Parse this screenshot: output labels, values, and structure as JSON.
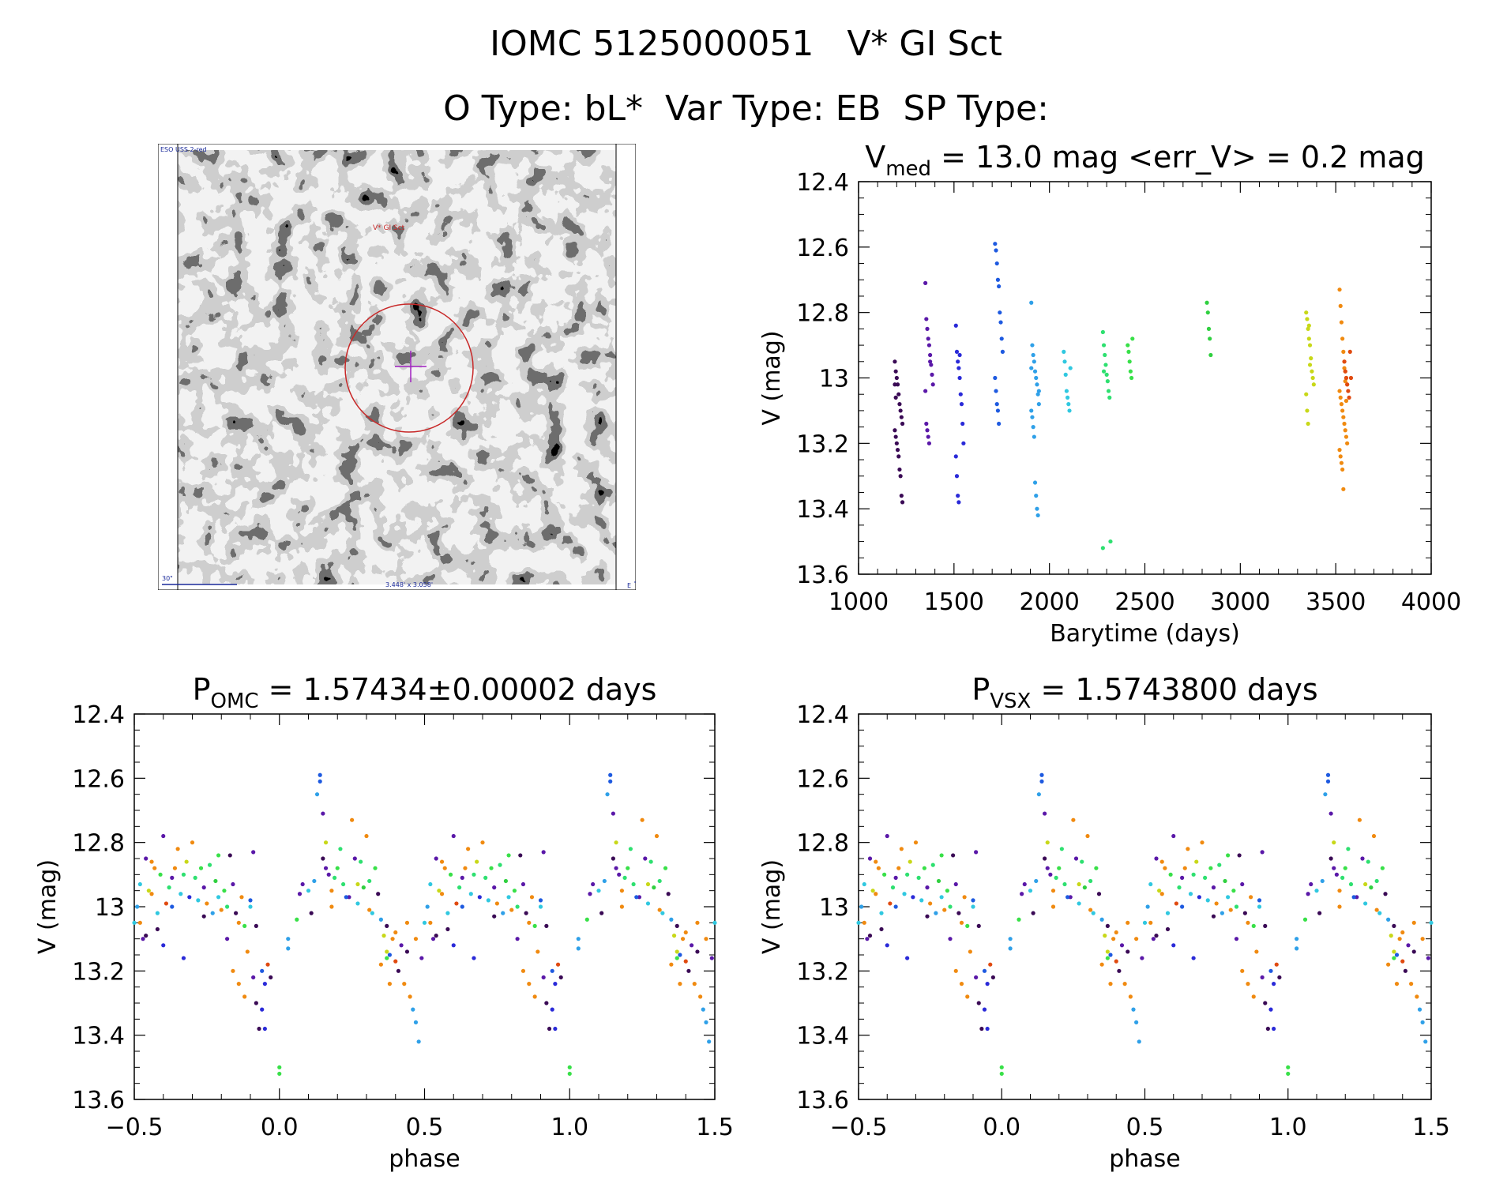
{
  "header": {
    "line1": "IOMC 5125000051   V* GI Sct",
    "line2": "O Type: bL*  Var Type: EB  SP Type:"
  },
  "finder": {
    "survey_label": "ESO USS 2-red",
    "object_label": "V* GI Sct",
    "scale_label": "30\"",
    "size_label": "3.448' x 3.058'",
    "north_label": "N",
    "east_label": "E"
  },
  "chart_data": [
    {
      "type": "scatter",
      "panel": "lightcurve",
      "title_main": "V",
      "title_sub": "med",
      "title_rest": " = 13.0 mag <err_V> = 0.2 mag",
      "xlabel": "Barytime (days)",
      "ylabel": "V (mag)",
      "xlim": [
        1000,
        4000
      ],
      "ylim": [
        12.4,
        13.6
      ],
      "y_inverted": true,
      "xticks": [
        1000,
        1500,
        2000,
        2500,
        3000,
        3500,
        4000
      ],
      "yticks": [
        12.4,
        12.6,
        12.8,
        13.0,
        13.2,
        13.4,
        13.6
      ],
      "groups": [
        {
          "x": 1210,
          "color": "#3a0a55",
          "y": [
            12.95,
            12.98,
            13.0,
            13.02,
            13.05,
            13.08,
            13.1,
            13.12,
            13.14,
            13.16,
            13.18,
            13.2,
            13.22,
            13.24,
            13.28,
            13.3,
            13.36,
            13.38,
            13.02,
            13.06
          ]
        },
        {
          "x": 1370,
          "color": "#5a18a8",
          "y": [
            12.71,
            12.82,
            12.85,
            12.88,
            12.9,
            12.93,
            12.96,
            12.99,
            13.02,
            13.04,
            13.14,
            13.16,
            13.18,
            13.2,
            12.95
          ]
        },
        {
          "x": 1530,
          "color": "#2a2ad8",
          "y": [
            12.84,
            12.92,
            12.95,
            12.97,
            13.0,
            13.05,
            13.08,
            13.14,
            13.2,
            13.24,
            13.3,
            13.36,
            13.38,
            12.93
          ]
        },
        {
          "x": 1735,
          "color": "#1e5ae0",
          "y": [
            12.59,
            12.61,
            12.65,
            12.7,
            12.72,
            12.8,
            12.83,
            12.88,
            12.92,
            13.0,
            13.04,
            13.08,
            13.1,
            13.14
          ]
        },
        {
          "x": 1925,
          "color": "#2fa0e8",
          "y": [
            12.77,
            12.9,
            12.93,
            12.95,
            12.98,
            13.0,
            13.02,
            13.05,
            13.08,
            13.1,
            13.12,
            13.15,
            13.18,
            13.32,
            13.36,
            13.4,
            13.42,
            13.04,
            12.97
          ]
        },
        {
          "x": 2095,
          "color": "#30c8e0",
          "y": [
            12.92,
            12.95,
            12.99,
            13.04,
            13.06,
            13.08,
            13.1,
            12.97
          ]
        },
        {
          "x": 2300,
          "color": "#2ee070",
          "y": [
            12.86,
            12.9,
            12.93,
            12.96,
            12.99,
            13.01,
            13.04,
            13.06,
            13.5,
            13.52,
            12.98
          ]
        },
        {
          "x": 2430,
          "color": "#38e048",
          "y": [
            12.9,
            12.92,
            12.95,
            12.98,
            13.0,
            12.88
          ]
        },
        {
          "x": 2845,
          "color": "#30d040",
          "y": [
            12.77,
            12.8,
            12.85,
            12.88,
            12.93
          ]
        },
        {
          "x": 3365,
          "color": "#c8d818",
          "y": [
            12.8,
            12.82,
            12.85,
            12.88,
            12.9,
            12.94,
            12.98,
            13.0,
            13.02,
            13.05,
            13.1,
            13.14,
            12.84,
            12.96
          ]
        },
        {
          "x": 3540,
          "color": "#f08a10",
          "y": [
            12.73,
            12.78,
            12.83,
            12.88,
            12.92,
            12.95,
            12.98,
            13.0,
            13.02,
            13.04,
            13.06,
            13.08,
            13.1,
            13.12,
            13.14,
            13.16,
            13.18,
            13.2,
            13.22,
            13.24,
            13.26,
            13.28,
            13.34,
            12.97,
            13.01,
            13.07
          ]
        },
        {
          "x": 3565,
          "color": "#e04a10",
          "y": [
            12.95,
            12.98,
            13.0,
            13.02,
            13.04,
            13.06,
            12.92,
            13.0
          ]
        }
      ]
    },
    {
      "type": "scatter",
      "panel": "phase_omc",
      "title_main": "P",
      "title_sub": "OMC",
      "title_rest": " = 1.57434±0.00002 days",
      "xlabel": "phase",
      "ylabel": "V (mag)",
      "xlim": [
        -0.5,
        1.5
      ],
      "ylim": [
        12.4,
        13.6
      ],
      "y_inverted": true,
      "xticks": [
        -0.5,
        0.0,
        0.5,
        1.0,
        1.5
      ],
      "xtick_labels": [
        "−0.5",
        "0.0",
        "0.5",
        "1.0",
        "1.5"
      ],
      "yticks": [
        12.4,
        12.6,
        12.8,
        13.0,
        13.2,
        13.4,
        13.6
      ],
      "phase_shift": 0
    },
    {
      "type": "scatter",
      "panel": "phase_vsx",
      "title_main": "P",
      "title_sub": "VSX",
      "title_rest": " = 1.5743800 days",
      "xlabel": "phase",
      "ylabel": "V (mag)",
      "xlim": [
        -0.5,
        1.5
      ],
      "ylim": [
        12.4,
        13.6
      ],
      "y_inverted": true,
      "xticks": [
        -0.5,
        0.0,
        0.5,
        1.0,
        1.5
      ],
      "xtick_labels": [
        "−0.5",
        "0.0",
        "0.5",
        "1.0",
        "1.5"
      ],
      "yticks": [
        12.4,
        12.6,
        12.8,
        13.0,
        13.2,
        13.4,
        13.6
      ],
      "phase_shift": 0
    }
  ],
  "phase_points": [
    {
      "p": 0.0,
      "y": 13.5,
      "c": "#38e048"
    },
    {
      "p": 0.0,
      "y": 13.52,
      "c": "#38e048"
    },
    {
      "p": 0.03,
      "y": 13.1,
      "c": "#2fa0e8"
    },
    {
      "p": 0.03,
      "y": 13.13,
      "c": "#2fa0e8"
    },
    {
      "p": 0.06,
      "y": 13.04,
      "c": "#38e048"
    },
    {
      "p": 0.07,
      "y": 12.96,
      "c": "#5a18a8"
    },
    {
      "p": 0.1,
      "y": 12.95,
      "c": "#30c8e0"
    },
    {
      "p": 0.12,
      "y": 12.92,
      "c": "#2fa0e8"
    },
    {
      "p": 0.14,
      "y": 12.59,
      "c": "#1e5ae0"
    },
    {
      "p": 0.14,
      "y": 12.61,
      "c": "#1e5ae0"
    },
    {
      "p": 0.13,
      "y": 12.65,
      "c": "#2fa0e8"
    },
    {
      "p": 0.15,
      "y": 12.71,
      "c": "#5a18a8"
    },
    {
      "p": 0.16,
      "y": 12.8,
      "c": "#c8d818"
    },
    {
      "p": 0.15,
      "y": 12.85,
      "c": "#3a0a55"
    },
    {
      "p": 0.17,
      "y": 12.9,
      "c": "#5a18a8"
    },
    {
      "p": 0.18,
      "y": 12.95,
      "c": "#f08a10"
    },
    {
      "p": 0.18,
      "y": 13.0,
      "c": "#f08a10"
    },
    {
      "p": 0.2,
      "y": 12.88,
      "c": "#38e048"
    },
    {
      "p": 0.21,
      "y": 12.82,
      "c": "#2ee070"
    },
    {
      "p": 0.22,
      "y": 12.93,
      "c": "#2ee070"
    },
    {
      "p": 0.24,
      "y": 12.97,
      "c": "#5a18a8"
    },
    {
      "p": 0.25,
      "y": 12.73,
      "c": "#f08a10"
    },
    {
      "p": 0.26,
      "y": 12.85,
      "c": "#5a18a8"
    },
    {
      "p": 0.27,
      "y": 12.99,
      "c": "#30c8e0"
    },
    {
      "p": 0.28,
      "y": 12.86,
      "c": "#2ee070"
    },
    {
      "p": 0.29,
      "y": 12.94,
      "c": "#30d040"
    },
    {
      "p": 0.3,
      "y": 12.78,
      "c": "#f08a10"
    },
    {
      "p": 0.31,
      "y": 12.92,
      "c": "#2ee070"
    },
    {
      "p": 0.32,
      "y": 13.02,
      "c": "#30c8e0"
    },
    {
      "p": 0.33,
      "y": 12.88,
      "c": "#38e048"
    },
    {
      "p": 0.34,
      "y": 12.96,
      "c": "#3a0a55"
    },
    {
      "p": 0.35,
      "y": 13.04,
      "c": "#2fa0e8"
    },
    {
      "p": 0.36,
      "y": 13.09,
      "c": "#c8d818"
    },
    {
      "p": 0.37,
      "y": 13.14,
      "c": "#c8d818"
    },
    {
      "p": 0.37,
      "y": 13.16,
      "c": "#38e048"
    },
    {
      "p": 0.38,
      "y": 13.15,
      "c": "#1e5ae0"
    },
    {
      "p": 0.38,
      "y": 13.24,
      "c": "#f08a10"
    },
    {
      "p": 0.39,
      "y": 13.1,
      "c": "#f08a10"
    },
    {
      "p": 0.4,
      "y": 13.08,
      "c": "#f08a10"
    },
    {
      "p": 0.41,
      "y": 13.2,
      "c": "#3a0a55"
    },
    {
      "p": 0.42,
      "y": 13.12,
      "c": "#5a18a8"
    },
    {
      "p": 0.43,
      "y": 13.24,
      "c": "#f08a10"
    },
    {
      "p": 0.44,
      "y": 13.14,
      "c": "#3a0a55"
    },
    {
      "p": 0.45,
      "y": 13.28,
      "c": "#f08a10"
    },
    {
      "p": 0.46,
      "y": 13.32,
      "c": "#2fa0e8"
    },
    {
      "p": 0.47,
      "y": 13.36,
      "c": "#2fa0e8"
    },
    {
      "p": 0.48,
      "y": 13.42,
      "c": "#2fa0e8"
    },
    {
      "p": 0.49,
      "y": 13.16,
      "c": "#5a18a8"
    },
    {
      "p": 0.5,
      "y": 13.05,
      "c": "#30c8e0"
    },
    {
      "p": 0.51,
      "y": 13.0,
      "c": "#2fa0e8"
    },
    {
      "p": 0.52,
      "y": 13.05,
      "c": "#f08a10"
    },
    {
      "p": 0.53,
      "y": 13.1,
      "c": "#5a18a8"
    },
    {
      "p": 0.54,
      "y": 12.85,
      "c": "#5a18a8"
    },
    {
      "p": 0.55,
      "y": 12.95,
      "c": "#c8d818"
    },
    {
      "p": 0.56,
      "y": 12.96,
      "c": "#f08a10"
    },
    {
      "p": 0.57,
      "y": 12.88,
      "c": "#f08a10"
    },
    {
      "p": 0.58,
      "y": 13.02,
      "c": "#30c8e0"
    },
    {
      "p": 0.59,
      "y": 12.9,
      "c": "#38e048"
    },
    {
      "p": 0.6,
      "y": 12.78,
      "c": "#5a18a8"
    },
    {
      "p": 0.61,
      "y": 12.99,
      "c": "#e04a10"
    },
    {
      "p": 0.62,
      "y": 12.94,
      "c": "#2ee070"
    },
    {
      "p": 0.63,
      "y": 13.0,
      "c": "#1e5ae0"
    },
    {
      "p": 0.64,
      "y": 12.88,
      "c": "#f08a10"
    },
    {
      "p": 0.65,
      "y": 12.82,
      "c": "#f08a10"
    },
    {
      "p": 0.66,
      "y": 12.96,
      "c": "#30c8e0"
    },
    {
      "p": 0.67,
      "y": 12.9,
      "c": "#2ee070"
    },
    {
      "p": 0.68,
      "y": 12.86,
      "c": "#c8d818"
    },
    {
      "p": 0.69,
      "y": 12.97,
      "c": "#2a2ad8"
    },
    {
      "p": 0.7,
      "y": 12.8,
      "c": "#f08a10"
    },
    {
      "p": 0.71,
      "y": 12.91,
      "c": "#2ee070"
    },
    {
      "p": 0.72,
      "y": 12.98,
      "c": "#30c8e0"
    },
    {
      "p": 0.73,
      "y": 12.88,
      "c": "#38e048"
    },
    {
      "p": 0.74,
      "y": 12.94,
      "c": "#5a18a8"
    },
    {
      "p": 0.75,
      "y": 12.99,
      "c": "#f08a10"
    },
    {
      "p": 0.76,
      "y": 12.87,
      "c": "#2ee070"
    },
    {
      "p": 0.77,
      "y": 13.02,
      "c": "#2fa0e8"
    },
    {
      "p": 0.78,
      "y": 12.92,
      "c": "#30d040"
    },
    {
      "p": 0.79,
      "y": 12.97,
      "c": "#30c8e0"
    },
    {
      "p": 0.8,
      "y": 13.01,
      "c": "#f08a10"
    },
    {
      "p": 0.81,
      "y": 12.95,
      "c": "#38e048"
    },
    {
      "p": 0.82,
      "y": 13.0,
      "c": "#2ee070"
    },
    {
      "p": 0.83,
      "y": 12.84,
      "c": "#3a0a55"
    },
    {
      "p": 0.84,
      "y": 12.93,
      "c": "#5a18a8"
    },
    {
      "p": 0.85,
      "y": 13.02,
      "c": "#3a0a55"
    },
    {
      "p": 0.86,
      "y": 13.05,
      "c": "#f08a10"
    },
    {
      "p": 0.87,
      "y": 12.97,
      "c": "#f08a10"
    },
    {
      "p": 0.88,
      "y": 13.06,
      "c": "#38e048"
    },
    {
      "p": 0.89,
      "y": 13.14,
      "c": "#f08a10"
    },
    {
      "p": 0.9,
      "y": 13.0,
      "c": "#30c8e0"
    },
    {
      "p": 0.91,
      "y": 12.83,
      "c": "#5a18a8"
    },
    {
      "p": 0.91,
      "y": 13.22,
      "c": "#5a18a8"
    },
    {
      "p": 0.92,
      "y": 13.3,
      "c": "#3a0a55"
    },
    {
      "p": 0.93,
      "y": 13.38,
      "c": "#3a0a55"
    },
    {
      "p": 0.94,
      "y": 13.2,
      "c": "#1e5ae0"
    },
    {
      "p": 0.94,
      "y": 13.32,
      "c": "#2a2ad8"
    },
    {
      "p": 0.95,
      "y": 13.38,
      "c": "#2a2ad8"
    },
    {
      "p": 0.95,
      "y": 13.24,
      "c": "#2a2ad8"
    },
    {
      "p": 0.96,
      "y": 13.18,
      "c": "#e04a10"
    },
    {
      "p": 0.97,
      "y": 13.22,
      "c": "#3a0a55"
    },
    {
      "p": 0.88,
      "y": 13.28,
      "c": "#f08a10"
    },
    {
      "p": 0.86,
      "y": 13.24,
      "c": "#f08a10"
    },
    {
      "p": 0.84,
      "y": 13.2,
      "c": "#f08a10"
    },
    {
      "p": 0.92,
      "y": 13.06,
      "c": "#3a0a55"
    },
    {
      "p": 0.9,
      "y": 12.98,
      "c": "#1e5ae0"
    },
    {
      "p": 0.67,
      "y": 13.16,
      "c": "#2a2ad8"
    },
    {
      "p": 0.63,
      "y": 12.91,
      "c": "#5a18a8"
    },
    {
      "p": 0.58,
      "y": 13.07,
      "c": "#3a0a55"
    },
    {
      "p": 0.56,
      "y": 12.86,
      "c": "#f08a10"
    },
    {
      "p": 0.52,
      "y": 12.93,
      "c": "#30c8e0"
    },
    {
      "p": 0.47,
      "y": 13.1,
      "c": "#f08a10"
    },
    {
      "p": 0.44,
      "y": 13.05,
      "c": "#f08a10"
    },
    {
      "p": 0.4,
      "y": 13.17,
      "c": "#e04a10"
    },
    {
      "p": 0.35,
      "y": 13.18,
      "c": "#f08a10"
    },
    {
      "p": 0.31,
      "y": 13.01,
      "c": "#f08a10"
    },
    {
      "p": 0.27,
      "y": 12.93,
      "c": "#c8d818"
    },
    {
      "p": 0.23,
      "y": 12.97,
      "c": "#1e5ae0"
    },
    {
      "p": 0.19,
      "y": 12.91,
      "c": "#2ee070"
    },
    {
      "p": 0.16,
      "y": 12.88,
      "c": "#5a18a8"
    },
    {
      "p": 0.11,
      "y": 13.02,
      "c": "#3a0a55"
    },
    {
      "p": 0.08,
      "y": 12.93,
      "c": "#5a18a8"
    },
    {
      "p": 0.37,
      "y": 13.06,
      "c": "#3a0a55"
    },
    {
      "p": 0.74,
      "y": 13.03,
      "c": "#3a0a55"
    },
    {
      "p": 0.79,
      "y": 12.84,
      "c": "#38e048"
    },
    {
      "p": 0.82,
      "y": 13.1,
      "c": "#5a18a8"
    },
    {
      "p": 0.6,
      "y": 13.12,
      "c": "#2a2ad8"
    },
    {
      "p": 0.54,
      "y": 13.09,
      "c": "#3a0a55"
    }
  ]
}
